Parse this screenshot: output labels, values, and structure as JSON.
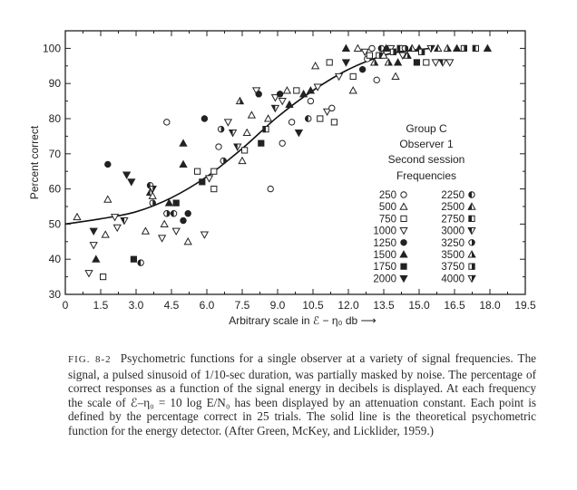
{
  "chart_data": {
    "type": "scatter",
    "xlabel": "Arbitrary scale in ℰ − η₀ db ⟶",
    "ylabel": "Percent correct",
    "xlim": [
      0,
      19.5
    ],
    "ylim": [
      30,
      105
    ],
    "xticks": [
      "0",
      "1.5",
      "3.0",
      "4.5",
      "6.0",
      "7.5",
      "9.0",
      "10.5",
      "12.0",
      "13.5",
      "15.0",
      "16.5",
      "18.0",
      "19.5"
    ],
    "yticks": [
      "30",
      "40",
      "50",
      "60",
      "70",
      "80",
      "90",
      "100"
    ],
    "grid": false,
    "legend": {
      "placement": "right",
      "header": [
        "Group C",
        "Observer 1",
        "Second session"
      ],
      "subheader": "Frequencies",
      "entries": [
        {
          "label": "250",
          "marker": "circle-open"
        },
        {
          "label": "500",
          "marker": "triangle-open"
        },
        {
          "label": "750",
          "marker": "square-open"
        },
        {
          "label": "1000",
          "marker": "triangle-down-open"
        },
        {
          "label": "1250",
          "marker": "circle-filled"
        },
        {
          "label": "1500",
          "marker": "triangle-filled"
        },
        {
          "label": "1750",
          "marker": "square-filled"
        },
        {
          "label": "2000",
          "marker": "triangle-down-filled"
        },
        {
          "label": "2250",
          "marker": "circle-half"
        },
        {
          "label": "2500",
          "marker": "triangle-half"
        },
        {
          "label": "2750",
          "marker": "square-half"
        },
        {
          "label": "3000",
          "marker": "triangle-down-half"
        },
        {
          "label": "3250",
          "marker": "circle-half-alt"
        },
        {
          "label": "3500",
          "marker": "triangle-half-alt"
        },
        {
          "label": "3750",
          "marker": "square-half-alt"
        },
        {
          "label": "4000",
          "marker": "triangle-down-half-alt"
        }
      ]
    },
    "curve": {
      "description": "theoretical psychometric function for the energy detector",
      "points": [
        [
          0,
          50
        ],
        [
          1.5,
          51.5
        ],
        [
          3,
          53.5
        ],
        [
          4.5,
          57.5
        ],
        [
          6,
          63.5
        ],
        [
          7.5,
          71.5
        ],
        [
          9,
          80.5
        ],
        [
          10.5,
          88
        ],
        [
          12,
          94
        ],
        [
          13.5,
          98
        ],
        [
          14.5,
          99.3
        ],
        [
          15.5,
          100
        ]
      ]
    },
    "points": [
      {
        "x": 0.5,
        "y": 52,
        "m": 1
      },
      {
        "x": 1.0,
        "y": 36,
        "m": 3
      },
      {
        "x": 1.2,
        "y": 44,
        "m": 3
      },
      {
        "x": 1.2,
        "y": 48,
        "m": 7
      },
      {
        "x": 1.3,
        "y": 40,
        "m": 5
      },
      {
        "x": 1.6,
        "y": 35,
        "m": 2
      },
      {
        "x": 1.7,
        "y": 47,
        "m": 1
      },
      {
        "x": 1.8,
        "y": 67,
        "m": 4
      },
      {
        "x": 1.8,
        "y": 57,
        "m": 1
      },
      {
        "x": 2.1,
        "y": 52,
        "m": 3
      },
      {
        "x": 2.2,
        "y": 49,
        "m": 3
      },
      {
        "x": 2.5,
        "y": 51,
        "m": 11
      },
      {
        "x": 2.6,
        "y": 64,
        "m": 7
      },
      {
        "x": 2.8,
        "y": 62,
        "m": 7
      },
      {
        "x": 2.9,
        "y": 40,
        "m": 6
      },
      {
        "x": 3.2,
        "y": 39,
        "m": 8
      },
      {
        "x": 3.4,
        "y": 48,
        "m": 1
      },
      {
        "x": 3.6,
        "y": 61,
        "m": 8
      },
      {
        "x": 3.6,
        "y": 59,
        "m": 9
      },
      {
        "x": 3.7,
        "y": 60,
        "m": 15
      },
      {
        "x": 3.7,
        "y": 56,
        "m": 12
      },
      {
        "x": 3.7,
        "y": 58,
        "m": 1
      },
      {
        "x": 4.1,
        "y": 46,
        "m": 3
      },
      {
        "x": 4.2,
        "y": 50,
        "m": 1
      },
      {
        "x": 4.3,
        "y": 79,
        "m": 0
      },
      {
        "x": 4.4,
        "y": 56,
        "m": 5
      },
      {
        "x": 4.3,
        "y": 53,
        "m": 12
      },
      {
        "x": 4.6,
        "y": 53,
        "m": 8
      },
      {
        "x": 4.7,
        "y": 56,
        "m": 6
      },
      {
        "x": 4.7,
        "y": 48,
        "m": 3
      },
      {
        "x": 5.0,
        "y": 51,
        "m": 4
      },
      {
        "x": 5.2,
        "y": 53,
        "m": 4
      },
      {
        "x": 5.2,
        "y": 45,
        "m": 1
      },
      {
        "x": 5.0,
        "y": 67,
        "m": 5
      },
      {
        "x": 5.0,
        "y": 73,
        "m": 5
      },
      {
        "x": 5.6,
        "y": 65,
        "m": 2
      },
      {
        "x": 5.8,
        "y": 62,
        "m": 6
      },
      {
        "x": 5.9,
        "y": 80,
        "m": 4
      },
      {
        "x": 5.9,
        "y": 47,
        "m": 3
      },
      {
        "x": 6.1,
        "y": 63,
        "m": 3
      },
      {
        "x": 6.3,
        "y": 65,
        "m": 2
      },
      {
        "x": 6.3,
        "y": 60,
        "m": 2
      },
      {
        "x": 6.5,
        "y": 72,
        "m": 0
      },
      {
        "x": 6.6,
        "y": 77,
        "m": 12
      },
      {
        "x": 6.7,
        "y": 68,
        "m": 12
      },
      {
        "x": 6.9,
        "y": 79,
        "m": 3
      },
      {
        "x": 7.1,
        "y": 76,
        "m": 11
      },
      {
        "x": 7.3,
        "y": 72,
        "m": 11
      },
      {
        "x": 7.4,
        "y": 85,
        "m": 13
      },
      {
        "x": 7.5,
        "y": 68,
        "m": 1
      },
      {
        "x": 7.6,
        "y": 71,
        "m": 2
      },
      {
        "x": 7.7,
        "y": 76,
        "m": 1
      },
      {
        "x": 7.9,
        "y": 81,
        "m": 1
      },
      {
        "x": 8.1,
        "y": 88,
        "m": 3
      },
      {
        "x": 8.2,
        "y": 87,
        "m": 4
      },
      {
        "x": 8.3,
        "y": 73,
        "m": 6
      },
      {
        "x": 8.5,
        "y": 77,
        "m": 10
      },
      {
        "x": 8.6,
        "y": 80,
        "m": 1
      },
      {
        "x": 8.7,
        "y": 60,
        "m": 0
      },
      {
        "x": 8.9,
        "y": 86,
        "m": 3
      },
      {
        "x": 8.9,
        "y": 83,
        "m": 11
      },
      {
        "x": 9.1,
        "y": 87,
        "m": 4
      },
      {
        "x": 9.2,
        "y": 85,
        "m": 3
      },
      {
        "x": 9.2,
        "y": 73,
        "m": 0
      },
      {
        "x": 9.4,
        "y": 88,
        "m": 1
      },
      {
        "x": 9.5,
        "y": 84,
        "m": 5
      },
      {
        "x": 9.6,
        "y": 79,
        "m": 0
      },
      {
        "x": 9.8,
        "y": 88,
        "m": 2
      },
      {
        "x": 9.9,
        "y": 76,
        "m": 7
      },
      {
        "x": 10.1,
        "y": 87,
        "m": 5
      },
      {
        "x": 10.3,
        "y": 80,
        "m": 8
      },
      {
        "x": 10.4,
        "y": 88,
        "m": 5
      },
      {
        "x": 10.4,
        "y": 85,
        "m": 0
      },
      {
        "x": 10.6,
        "y": 95,
        "m": 1
      },
      {
        "x": 10.7,
        "y": 89,
        "m": 3
      },
      {
        "x": 10.8,
        "y": 80,
        "m": 2
      },
      {
        "x": 11.1,
        "y": 82,
        "m": 3
      },
      {
        "x": 11.2,
        "y": 96,
        "m": 2
      },
      {
        "x": 11.3,
        "y": 83,
        "m": 0
      },
      {
        "x": 11.4,
        "y": 79,
        "m": 2
      },
      {
        "x": 11.6,
        "y": 92,
        "m": 3
      },
      {
        "x": 11.9,
        "y": 96,
        "m": 7
      },
      {
        "x": 11.9,
        "y": 100,
        "m": 5
      },
      {
        "x": 12.2,
        "y": 92,
        "m": 2
      },
      {
        "x": 12.2,
        "y": 88,
        "m": 1
      },
      {
        "x": 12.4,
        "y": 100,
        "m": 1
      },
      {
        "x": 12.6,
        "y": 94,
        "m": 4
      },
      {
        "x": 12.7,
        "y": 99,
        "m": 3
      },
      {
        "x": 12.8,
        "y": 97,
        "m": 0
      },
      {
        "x": 12.9,
        "y": 98,
        "m": 2
      },
      {
        "x": 13.0,
        "y": 100,
        "m": 0
      },
      {
        "x": 13.1,
        "y": 96,
        "m": 13
      },
      {
        "x": 13.2,
        "y": 91,
        "m": 0
      },
      {
        "x": 13.3,
        "y": 98,
        "m": 14
      },
      {
        "x": 13.4,
        "y": 100,
        "m": 8
      },
      {
        "x": 13.5,
        "y": 98,
        "m": 1
      },
      {
        "x": 13.6,
        "y": 100,
        "m": 5
      },
      {
        "x": 13.7,
        "y": 96,
        "m": 13
      },
      {
        "x": 13.8,
        "y": 100,
        "m": 3
      },
      {
        "x": 13.9,
        "y": 99,
        "m": 14
      },
      {
        "x": 14.0,
        "y": 92,
        "m": 1
      },
      {
        "x": 14.1,
        "y": 96,
        "m": 5
      },
      {
        "x": 14.2,
        "y": 100,
        "m": 10
      },
      {
        "x": 14.3,
        "y": 98,
        "m": 3
      },
      {
        "x": 14.4,
        "y": 100,
        "m": 12
      },
      {
        "x": 14.5,
        "y": 98,
        "m": 13
      },
      {
        "x": 14.7,
        "y": 100,
        "m": 9
      },
      {
        "x": 14.9,
        "y": 96,
        "m": 6
      },
      {
        "x": 15.0,
        "y": 100,
        "m": 5
      },
      {
        "x": 15.1,
        "y": 99,
        "m": 14
      },
      {
        "x": 15.3,
        "y": 96,
        "m": 2
      },
      {
        "x": 15.5,
        "y": 100,
        "m": 15
      },
      {
        "x": 15.7,
        "y": 96,
        "m": 3
      },
      {
        "x": 15.8,
        "y": 100,
        "m": 9
      },
      {
        "x": 16.0,
        "y": 96,
        "m": 11
      },
      {
        "x": 16.2,
        "y": 100,
        "m": 13
      },
      {
        "x": 16.3,
        "y": 96,
        "m": 3
      },
      {
        "x": 16.6,
        "y": 100,
        "m": 5
      },
      {
        "x": 16.9,
        "y": 100,
        "m": 14
      },
      {
        "x": 17.4,
        "y": 100,
        "m": 10
      },
      {
        "x": 17.9,
        "y": 100,
        "m": 5
      }
    ]
  },
  "caption": {
    "label": "FIG. 8-2",
    "text": "Psychometric functions for a single observer at a variety of signal frequencies. The signal, a pulsed sinusoid of 1/10-sec duration, was partially masked by noise. The percentage of correct responses as a function of the signal energy in decibels is displayed. At each frequency the scale of ℰ–η₀ = 10 log E/N₀ has been displayed by an attenuation constant. Each point is defined by the percentage correct in 25 trials. The solid line is the theoretical psychometric function for the energy detector. (After Green, McKey, and Licklider, 1959.)"
  }
}
